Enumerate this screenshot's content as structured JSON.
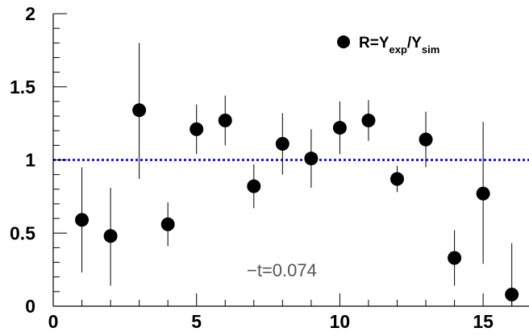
{
  "chart_data": {
    "type": "scatter",
    "title": "",
    "xlabel": "",
    "ylabel": "",
    "xlim": [
      0,
      16.6
    ],
    "ylim": [
      0,
      2
    ],
    "x_ticks": [
      0,
      5,
      10,
      15
    ],
    "y_ticks": [
      0,
      0.5,
      1,
      1.5,
      2
    ],
    "x_tick_labels": [
      "0",
      "5",
      "10",
      "15"
    ],
    "y_tick_labels": [
      "0",
      "0.5",
      "1",
      "1.5",
      "2"
    ],
    "reference_line": {
      "y": 1,
      "style": "dotted",
      "color": "#1a1aff"
    },
    "legend": {
      "placement": "top-right",
      "entry_main": "R=Y",
      "entry_sub1": "exp",
      "entry_mid": "/Y",
      "entry_sub2": "sim"
    },
    "annotation": "−t=0.074",
    "series": [
      {
        "marker": "circle",
        "color": "#000000",
        "points": [
          {
            "x": 1,
            "y": 0.59,
            "err_low": 0.36,
            "err_high": 0.36
          },
          {
            "x": 2,
            "y": 0.48,
            "err_low": 0.34,
            "err_high": 0.33
          },
          {
            "x": 3,
            "y": 1.34,
            "err_low": 0.47,
            "err_high": 0.46
          },
          {
            "x": 4,
            "y": 0.56,
            "err_low": 0.15,
            "err_high": 0.15
          },
          {
            "x": 5,
            "y": 1.21,
            "err_low": 0.17,
            "err_high": 0.17
          },
          {
            "x": 6,
            "y": 1.27,
            "err_low": 0.17,
            "err_high": 0.17
          },
          {
            "x": 7,
            "y": 0.82,
            "err_low": 0.15,
            "err_high": 0.15
          },
          {
            "x": 8,
            "y": 1.11,
            "err_low": 0.21,
            "err_high": 0.21
          },
          {
            "x": 9,
            "y": 1.01,
            "err_low": 0.2,
            "err_high": 0.2
          },
          {
            "x": 10,
            "y": 1.22,
            "err_low": 0.18,
            "err_high": 0.18
          },
          {
            "x": 11,
            "y": 1.27,
            "err_low": 0.14,
            "err_high": 0.14
          },
          {
            "x": 12,
            "y": 0.87,
            "err_low": 0.09,
            "err_high": 0.09
          },
          {
            "x": 13,
            "y": 1.14,
            "err_low": 0.19,
            "err_high": 0.19
          },
          {
            "x": 14,
            "y": 0.33,
            "err_low": 0.19,
            "err_high": 0.19
          },
          {
            "x": 15,
            "y": 0.77,
            "err_low": 0.48,
            "err_high": 0.49
          },
          {
            "x": 16,
            "y": 0.08,
            "err_low": 0.08,
            "err_high": 0.35
          }
        ]
      }
    ]
  }
}
